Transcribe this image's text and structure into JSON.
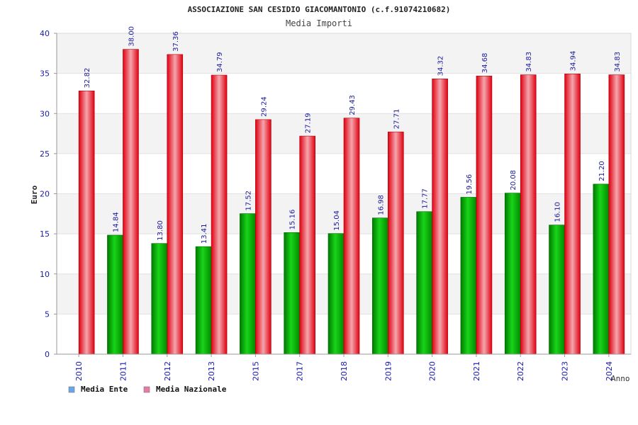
{
  "chart_data": {
    "type": "bar",
    "title": "ASSOCIAZIONE SAN CESIDIO GIACOMANTONIO (c.f.91074210682)",
    "subtitle": "Media Importi",
    "xlabel": "Anno",
    "ylabel": "Euro",
    "ylim": [
      0,
      40
    ],
    "yticks": [
      "0",
      "5",
      "10",
      "15",
      "20",
      "25",
      "30",
      "35",
      "40"
    ],
    "categories": [
      "2010",
      "2011",
      "2012",
      "2013",
      "2015",
      "2017",
      "2018",
      "2019",
      "2020",
      "2021",
      "2022",
      "2023",
      "2024"
    ],
    "series": [
      {
        "name": "Media Ente",
        "legend_color": "#6aa7e8",
        "values": [
          null,
          14.84,
          13.8,
          13.41,
          17.52,
          15.16,
          15.04,
          16.98,
          17.77,
          19.56,
          20.08,
          16.1,
          21.2
        ],
        "labels": [
          "",
          "14.84",
          "13.80",
          "13.41",
          "17.52",
          "15.16",
          "15.04",
          "16.98",
          "17.77",
          "19.56",
          "20.08",
          "16.10",
          "21.20"
        ]
      },
      {
        "name": "Media Nazionale",
        "legend_color": "#e87aa6",
        "values": [
          32.82,
          38.0,
          37.36,
          34.79,
          29.24,
          27.19,
          29.43,
          27.71,
          34.32,
          34.68,
          34.83,
          34.94,
          34.83
        ],
        "labels": [
          "32.82",
          "38.00",
          "37.36",
          "34.79",
          "29.24",
          "27.19",
          "29.43",
          "27.71",
          "34.32",
          "34.68",
          "34.83",
          "34.94",
          "34.83"
        ]
      }
    ],
    "grid": true,
    "legend_position": "bottom-left"
  }
}
